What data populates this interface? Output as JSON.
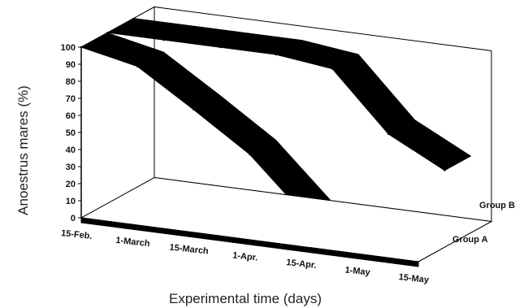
{
  "chart_data": {
    "type": "area",
    "subtype": "3d-ribbon",
    "title": "",
    "xlabel": "Experimental time (days)",
    "ylabel": "Anoestrus mares (%)",
    "categories": [
      "15-Feb.",
      "1-March",
      "15-March",
      "1-Apr.",
      "15-Apr.",
      "1-May",
      "15-May"
    ],
    "ylim": [
      0,
      100
    ],
    "yticks": [
      0,
      10,
      20,
      30,
      40,
      50,
      60,
      70,
      80,
      90,
      100
    ],
    "grid": false,
    "series": [
      {
        "name": "Group A",
        "values": [
          100,
          93,
          72,
          50,
          18,
          2,
          0
        ]
      },
      {
        "name": "Group B",
        "values": [
          100,
          100,
          100,
          100,
          96,
          62,
          45
        ]
      }
    ],
    "colors": {
      "ribbon": "#000000",
      "background": "#ffffff"
    }
  }
}
